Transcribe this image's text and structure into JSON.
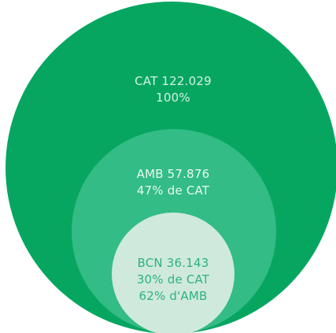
{
  "colors": {
    "background": "#ffffff",
    "outer_circle": "#06a661",
    "middle_circle": "#33bc85",
    "inner_circle": "#cfe9dd",
    "outer_text": "#d6f2e4",
    "middle_text": "#e9f8f0",
    "inner_text": "#2eb37c"
  },
  "circles": [
    {
      "name": "CAT",
      "label": "CAT 122.029",
      "percent": "100%"
    },
    {
      "name": "AMB",
      "label": "AMB 57.876",
      "percent": "47% de CAT"
    },
    {
      "name": "BCN",
      "label": "BCN 36.143",
      "percent": "30% de CAT",
      "percent_parent": "62% d'AMB"
    }
  ]
}
